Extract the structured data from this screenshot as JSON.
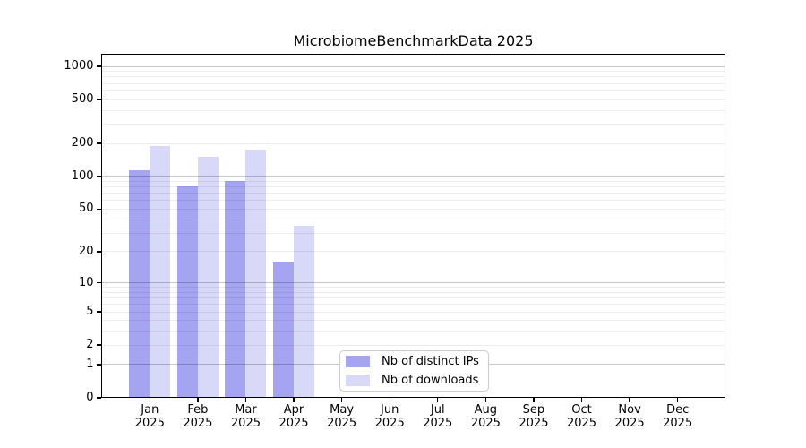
{
  "title": "MicrobiomeBenchmarkData 2025",
  "chart_data": {
    "type": "bar",
    "title": "MicrobiomeBenchmarkData 2025",
    "categories": [
      "Jan 2025",
      "Feb 2025",
      "Mar 2025",
      "Apr 2025",
      "May 2025",
      "Jun 2025",
      "Jul 2025",
      "Aug 2025",
      "Sep 2025",
      "Oct 2025",
      "Nov 2025",
      "Dec 2025"
    ],
    "series": [
      {
        "name": "Nb of distinct IPs",
        "color": "#a4a4f0",
        "values": [
          114,
          81,
          91,
          16,
          null,
          null,
          null,
          null,
          null,
          null,
          null,
          null
        ]
      },
      {
        "name": "Nb of downloads",
        "color": "#d8d8f8",
        "values": [
          190,
          152,
          176,
          35,
          null,
          null,
          null,
          null,
          null,
          null,
          null,
          null
        ]
      }
    ],
    "yscale": "log1p",
    "yticks": [
      0,
      1,
      2,
      5,
      10,
      20,
      50,
      100,
      200,
      500,
      1000
    ],
    "ylim": [
      0,
      1300
    ],
    "xlabel": "",
    "ylabel": "",
    "grid": "horizontal, major and minor, drawn over bars",
    "legend_position": "lower-center-inside"
  },
  "colors": {
    "background": "#ffffff",
    "spine": "#000000",
    "major_grid": "#00000038",
    "minor_grid": "#00000012",
    "legend_border": "#cccccc"
  }
}
